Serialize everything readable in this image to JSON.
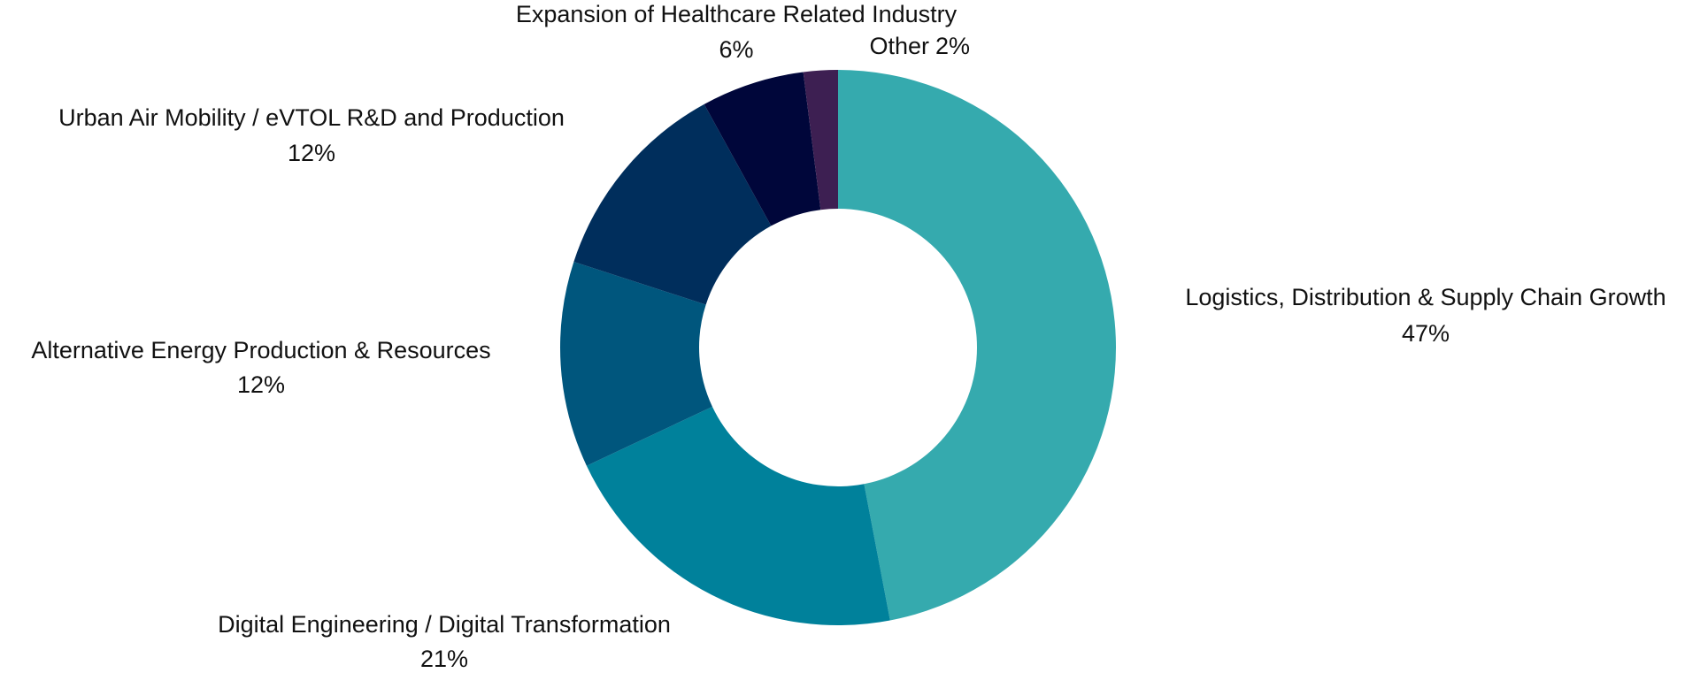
{
  "chart_data": {
    "type": "donut",
    "categories": [
      "Logistics, Distribution & Supply Chain Growth",
      "Digital Engineering / Digital Transformation",
      "Alternative Energy Production & Resources",
      "Urban Air Mobility / eVTOL R&D and Production",
      "Expansion of Healthcare Related Industry",
      "Other"
    ],
    "values": [
      47,
      21,
      12,
      12,
      6,
      2
    ],
    "value_labels": [
      "47%",
      "21%",
      "12%",
      "12%",
      "6%",
      "2%"
    ],
    "colors": [
      "#35aaae",
      "#00819b",
      "#00567d",
      "#002e5c",
      "#00063a",
      "#3d1f52"
    ]
  }
}
